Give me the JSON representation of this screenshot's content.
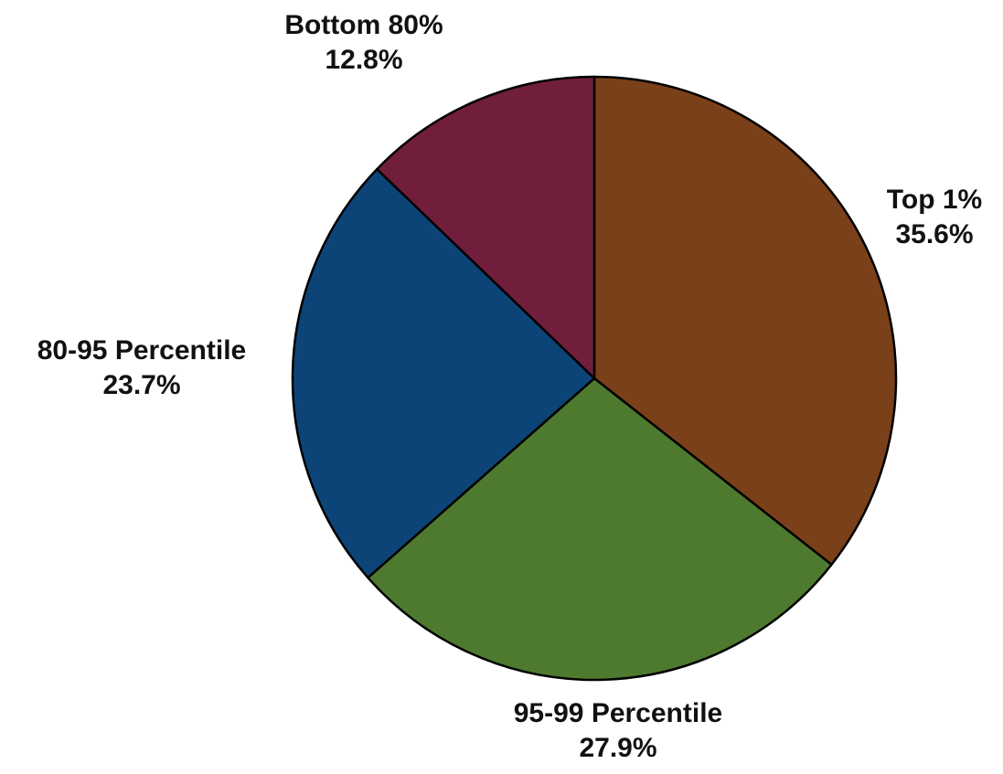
{
  "chart_data": {
    "type": "pie",
    "start_angle_deg": 0,
    "direction": "clockwise",
    "slices": [
      {
        "label": "Top 1%",
        "value": 35.6,
        "value_text": "35.6%",
        "color": "#7a401a"
      },
      {
        "label": "95-99 Percentile",
        "value": 27.9,
        "value_text": "27.9%",
        "color": "#4e7a2f"
      },
      {
        "label": "80-95 Percentile",
        "value": 23.7,
        "value_text": "23.7%",
        "color": "#0d4477"
      },
      {
        "label": "Bottom 80%",
        "value": 12.8,
        "value_text": "12.8%",
        "color": "#701e3c"
      }
    ]
  }
}
